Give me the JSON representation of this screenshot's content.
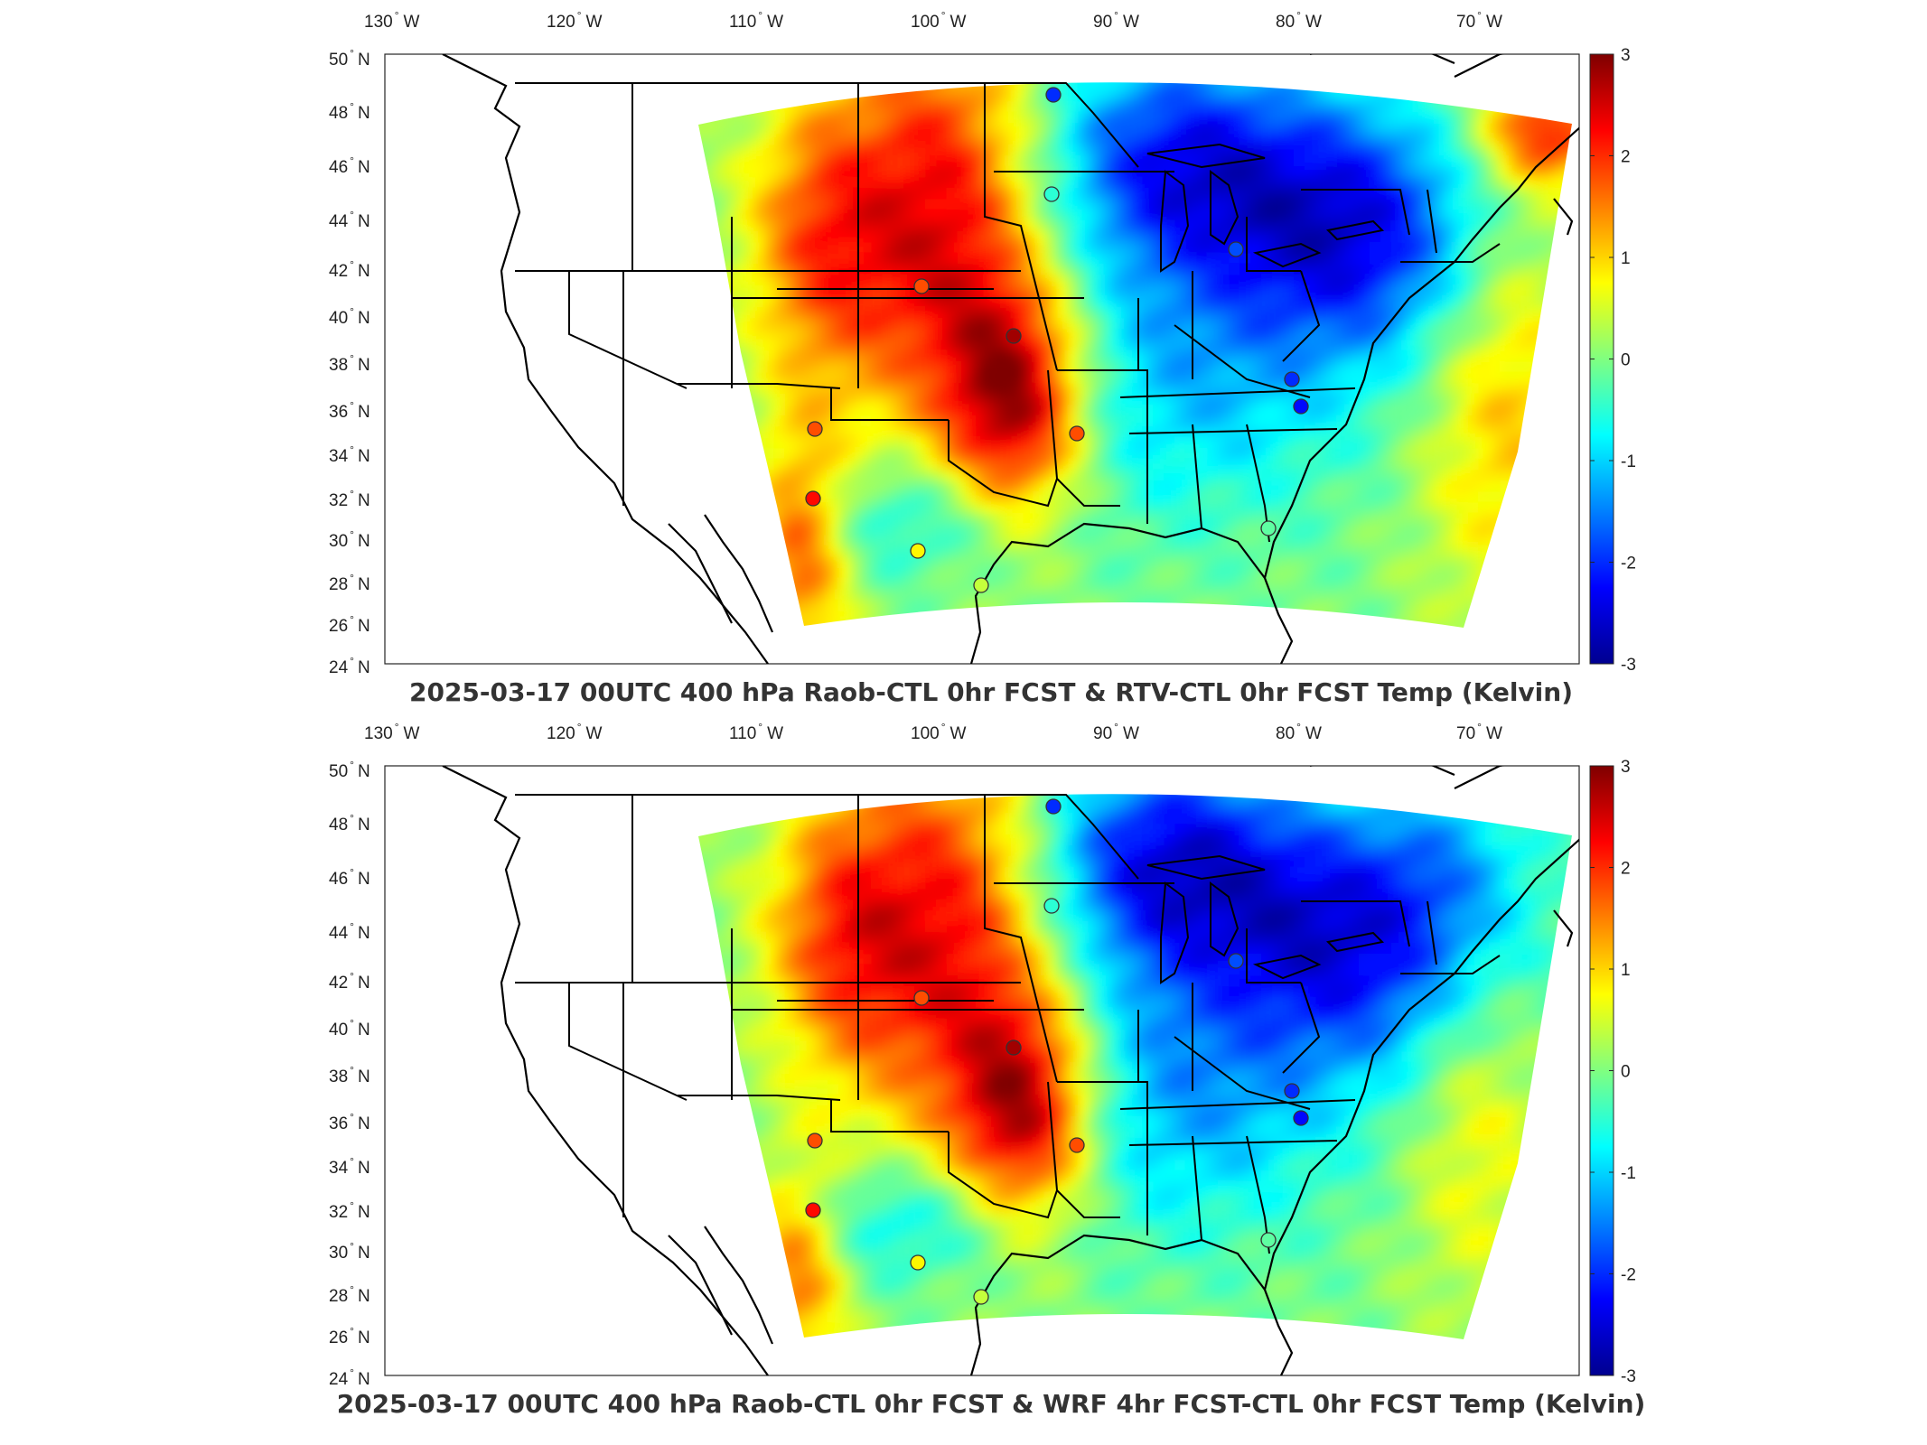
{
  "lon_labels": [
    {
      "deg": "130",
      "dir": "W"
    },
    {
      "deg": "120",
      "dir": "W"
    },
    {
      "deg": "110",
      "dir": "W"
    },
    {
      "deg": "100",
      "dir": "W"
    },
    {
      "deg": "90",
      "dir": "W"
    },
    {
      "deg": "80",
      "dir": "W"
    },
    {
      "deg": "70",
      "dir": "W"
    }
  ],
  "lat_labels": [
    {
      "deg": "50",
      "dir": "N"
    },
    {
      "deg": "48",
      "dir": "N"
    },
    {
      "deg": "46",
      "dir": "N"
    },
    {
      "deg": "44",
      "dir": "N"
    },
    {
      "deg": "42",
      "dir": "N"
    },
    {
      "deg": "40",
      "dir": "N"
    },
    {
      "deg": "38",
      "dir": "N"
    },
    {
      "deg": "36",
      "dir": "N"
    },
    {
      "deg": "34",
      "dir": "N"
    },
    {
      "deg": "32",
      "dir": "N"
    },
    {
      "deg": "30",
      "dir": "N"
    },
    {
      "deg": "28",
      "dir": "N"
    },
    {
      "deg": "26",
      "dir": "N"
    },
    {
      "deg": "24",
      "dir": "N"
    }
  ],
  "degree_symbol": "°",
  "colorbar": {
    "ticks": [
      "3",
      "2",
      "1",
      "0",
      "-1",
      "-2",
      "-3"
    ],
    "colormap": [
      "#7f0000",
      "#ff0000",
      "#ff8000",
      "#ffff00",
      "#80ff80",
      "#00ffff",
      "#0080ff",
      "#0000ff",
      "#00008f"
    ]
  },
  "panels": [
    {
      "title": "2025-03-17 00UTC 400 hPa Raob-CTL 0hr FCST & RTV-CTL 0hr FCST Temp (Kelvin)"
    },
    {
      "title": "2025-03-17 00UTC 400 hPa Raob-CTL 0hr FCST & WRF 4hr FCST-CTL 0hr FCST Temp (Kelvin)"
    }
  ]
}
